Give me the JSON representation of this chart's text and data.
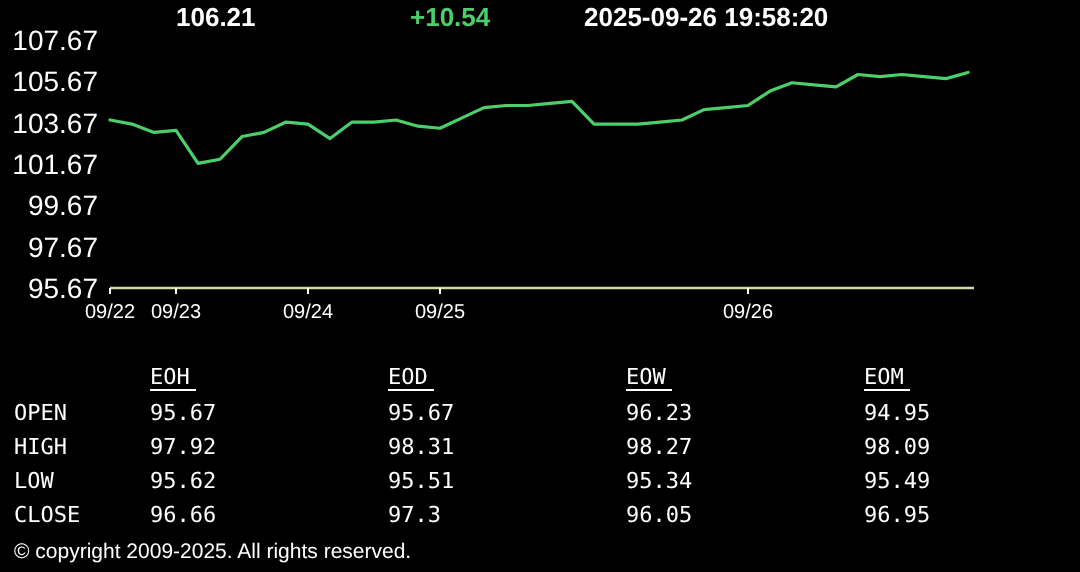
{
  "chart_data": [
    {
      "type": "line",
      "title": "106.21",
      "subtitle": "+10.54",
      "annotations": [
        "2025-09-26 19:58:20"
      ],
      "categories": [
        "09/22",
        null,
        null,
        "09/23",
        null,
        null,
        null,
        null,
        null,
        "09/24",
        null,
        null,
        null,
        null,
        null,
        "09/25",
        null,
        null,
        null,
        null,
        null,
        null,
        null,
        null,
        null,
        null,
        null,
        null,
        null,
        "09/26",
        null,
        null,
        null,
        null,
        null,
        null,
        null,
        null,
        null,
        null
      ],
      "ylim": [
        95.67,
        107.67
      ],
      "yticks": [
        95.67,
        97.67,
        99.67,
        101.67,
        103.67,
        105.67,
        107.67
      ],
      "series": [
        {
          "color": "#4ccf6a",
          "values": [
            103.8,
            103.6,
            103.2,
            103.3,
            101.7,
            101.9,
            103.0,
            103.2,
            103.7,
            103.6,
            102.9,
            103.7,
            103.7,
            103.8,
            103.5,
            103.4,
            103.9,
            104.4,
            104.5,
            104.5,
            104.6,
            104.7,
            103.6,
            103.6,
            103.6,
            103.7,
            103.8,
            104.3,
            104.4,
            104.5,
            105.2,
            105.6,
            105.5,
            105.4,
            106.0,
            105.9,
            106.0,
            105.9,
            105.8,
            106.1
          ]
        }
      ],
      "grid": false,
      "marker": "none",
      "line_style": "solid"
    },
    {
      "type": "other",
      "categories": [
        "EOH",
        "EOD",
        "EOW",
        "EOM"
      ],
      "y_categories": [
        "OPEN",
        "HIGH",
        "LOW",
        "CLOSE"
      ],
      "cell_labels": [
        [
          "95.67",
          "95.67",
          "96.23",
          "94.95"
        ],
        [
          "97.92",
          "98.31",
          "98.27",
          "98.09"
        ],
        [
          "95.62",
          "95.51",
          "95.34",
          "95.49"
        ],
        [
          "96.66",
          "97.3",
          "96.05",
          "96.95"
        ]
      ],
      "annotations": [
        "© copyright 2009-2025. All rights reserved."
      ]
    }
  ]
}
